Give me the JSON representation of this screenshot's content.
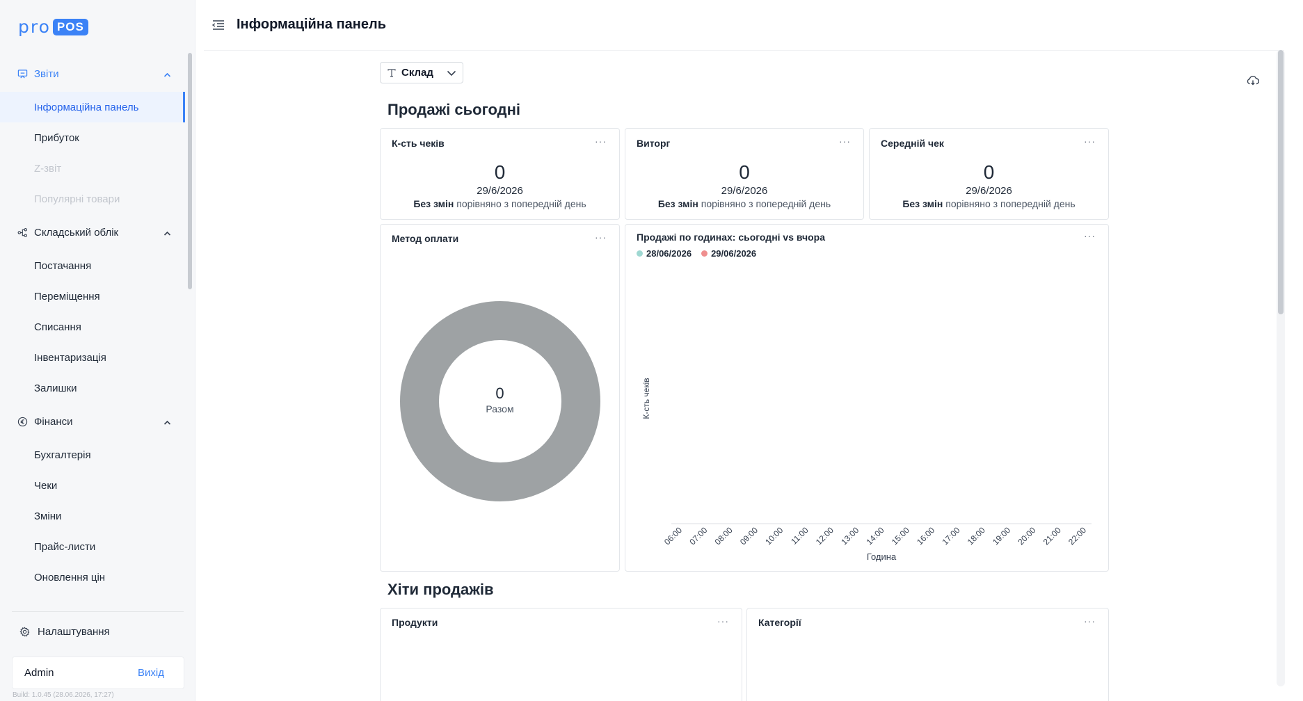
{
  "app": {
    "logo_pro": "pro",
    "logo_pos": "POS",
    "accent": "#3b82f6"
  },
  "header": {
    "title": "Інформаційна панель"
  },
  "sidebar": {
    "groups": [
      {
        "label": "Звіти",
        "icon": "presentation-icon",
        "items": [
          "Інформаційна панель",
          "Прибуток",
          "Z-звіт",
          "Популярні товари"
        ]
      },
      {
        "label": "Складський облік",
        "icon": "flow-icon",
        "items": [
          "Постачання",
          "Переміщення",
          "Списання",
          "Інвентаризація",
          "Залишки"
        ]
      },
      {
        "label": "Фінанси",
        "icon": "euro-icon",
        "items": [
          "Бухгалтерія",
          "Чеки",
          "Зміни",
          "Прайс-листи",
          "Оновлення цін"
        ]
      }
    ],
    "settings_label": "Налаштування",
    "user": "Admin",
    "logout": "Вихід",
    "build": "Build: 1.0.45    (28.06.2026, 17:27)"
  },
  "filter": {
    "label": "Склад",
    "icon": "text-type-icon"
  },
  "sections": {
    "today": "Продажі сьогодні",
    "hits": "Хіти продажів"
  },
  "kpis": [
    {
      "title": "К-сть чеків",
      "value": "0",
      "date": "29/6/2026",
      "change": "Без змін",
      "compare": "порівняно з попередній день"
    },
    {
      "title": "Виторг",
      "value": "0",
      "date": "29/6/2026",
      "change": "Без змін",
      "compare": "порівняно з попередній день"
    },
    {
      "title": "Середній чек",
      "value": "0",
      "date": "29/6/2026",
      "change": "Без змін",
      "compare": "порівняно з попередній день"
    }
  ],
  "payment": {
    "title": "Метод оплати",
    "total_value": "0",
    "total_label": "Разом",
    "ring_color": "#9ea2a4"
  },
  "hourly": {
    "title": "Продажі по годинах: сьогодні vs вчора",
    "ylabel": "К-сть чеків",
    "xlabel": "Година",
    "series": [
      {
        "name": "28/06/2026",
        "color": "#9fd8d2"
      },
      {
        "name": "29/06/2026",
        "color": "#ef8f8f"
      }
    ],
    "x_ticks": [
      "06:00",
      "07:00",
      "08:00",
      "09:00",
      "10:00",
      "11:00",
      "12:00",
      "13:00",
      "14:00",
      "15:00",
      "16:00",
      "17:00",
      "18:00",
      "19:00",
      "20:00",
      "21:00",
      "22:00"
    ]
  },
  "hits": {
    "products": "Продукти",
    "categories": "Категорії"
  },
  "card_menu": "···"
}
